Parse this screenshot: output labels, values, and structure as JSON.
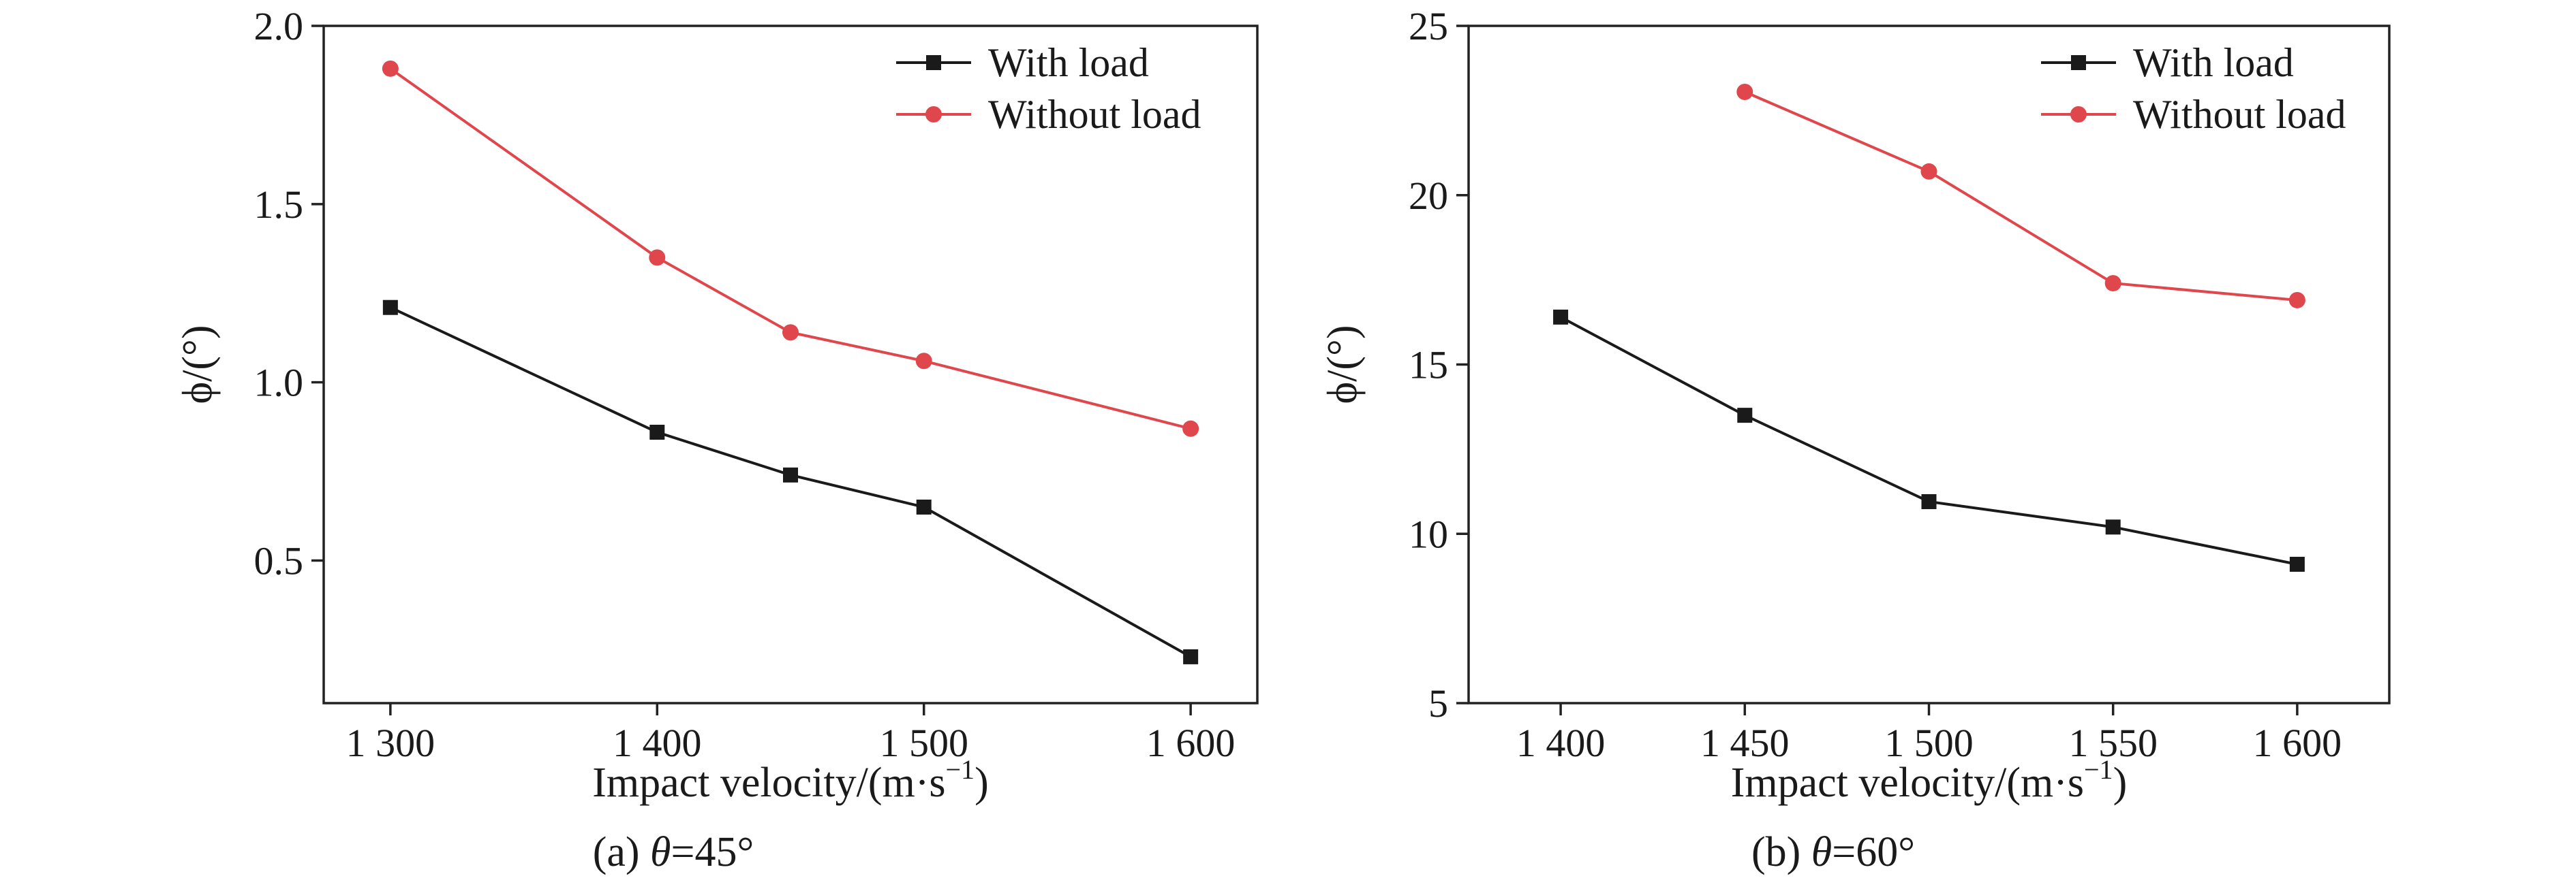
{
  "colors": {
    "with_load": "#1a1a1a",
    "without_load": "#e0474c",
    "axis": "#222222"
  },
  "chart_data": [
    {
      "type": "line",
      "x_ticks": [
        1300,
        1400,
        1500,
        1600
      ],
      "x_tick_labels": [
        "1 300",
        "1 400",
        "1 500",
        "1 600"
      ],
      "xlim": [
        1275,
        1625
      ],
      "y_ticks": [
        0.5,
        1.0,
        1.5,
        2.0
      ],
      "y_tick_labels": [
        "0.5",
        "1.0",
        "1.5",
        "2.0"
      ],
      "ylim": [
        0.1,
        2.0
      ],
      "xlabel": "Impact velocity/(m·s",
      "xlabel_sup": "−1",
      "xlabel_tail": ")",
      "ylabel": "ϕ/(°)",
      "caption_prefix": "(a) ",
      "caption_var": "θ",
      "caption_value": "=45°",
      "legend_position": "top-right",
      "series": [
        {
          "name": "With load",
          "marker": "square",
          "color": "#1a1a1a",
          "x": [
            1300,
            1400,
            1450,
            1500,
            1600
          ],
          "y": [
            1.21,
            0.86,
            0.74,
            0.65,
            0.23
          ]
        },
        {
          "name": "Without load",
          "marker": "circle",
          "color": "#e0474c",
          "x": [
            1300,
            1400,
            1450,
            1500,
            1600
          ],
          "y": [
            1.88,
            1.35,
            1.14,
            1.06,
            0.87
          ]
        }
      ]
    },
    {
      "type": "line",
      "x_ticks": [
        1400,
        1450,
        1500,
        1550,
        1600
      ],
      "x_tick_labels": [
        "1 400",
        "1 450",
        "1 500",
        "1 550",
        "1 600"
      ],
      "xlim": [
        1375,
        1625
      ],
      "y_ticks": [
        5,
        10,
        15,
        20,
        25
      ],
      "y_tick_labels": [
        "5",
        "10",
        "15",
        "20",
        "25"
      ],
      "ylim": [
        5,
        25
      ],
      "xlabel": "Impact velocity/(m·s",
      "xlabel_sup": "−1",
      "xlabel_tail": ")",
      "ylabel": "ϕ/(°)",
      "caption_prefix": "(b) ",
      "caption_var": "θ",
      "caption_value": "=60°",
      "legend_position": "top-right",
      "series": [
        {
          "name": "With load",
          "marker": "square",
          "color": "#1a1a1a",
          "x": [
            1400,
            1450,
            1500,
            1550,
            1600
          ],
          "y": [
            16.4,
            13.5,
            10.95,
            10.2,
            9.1
          ]
        },
        {
          "name": "Without load",
          "marker": "circle",
          "color": "#e0474c",
          "x": [
            1450,
            1500,
            1550,
            1600
          ],
          "y": [
            23.05,
            20.7,
            17.4,
            16.9
          ]
        }
      ]
    }
  ]
}
